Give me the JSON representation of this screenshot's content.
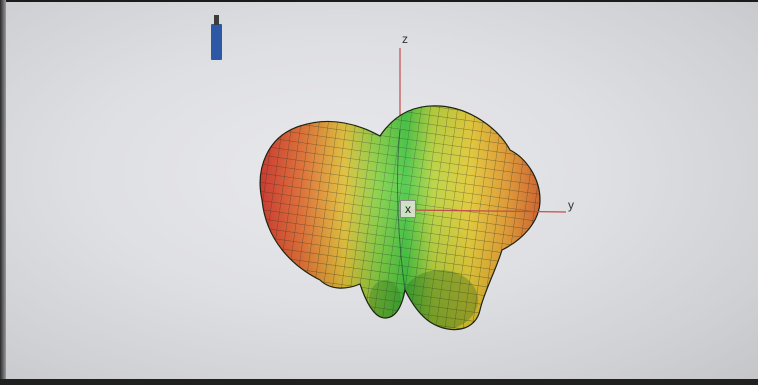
{
  "axes": {
    "z_label": "z",
    "y_label": "y",
    "x_label": "x"
  },
  "colors": {
    "surface_red": "#e63c2a",
    "surface_orange": "#f08a24",
    "surface_yellow": "#e8d82a",
    "surface_green": "#3ec638",
    "axis_red": "#cc4444",
    "screen": "#dedfe3"
  },
  "icons": {
    "marker": "usb-stick-icon"
  }
}
